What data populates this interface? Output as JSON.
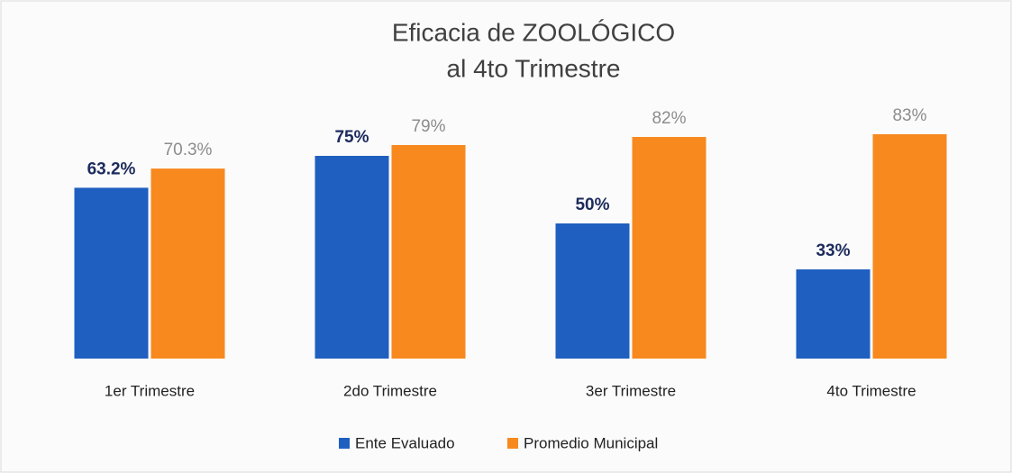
{
  "chart_data": {
    "type": "bar",
    "title": [
      "Eficacia  de ZOOLÓGICO",
      "al 4to Trimestre"
    ],
    "categories": [
      "1er Trimestre",
      "2do Trimestre",
      "3er Trimestre",
      "4to Trimestre"
    ],
    "series": [
      {
        "name": "Ente Evaluado",
        "color": "#1f5fc0",
        "values": [
          63.2,
          75,
          50,
          33
        ],
        "value_labels": [
          "63.2%",
          "75%",
          "50%",
          "33%"
        ]
      },
      {
        "name": "Promedio Municipal",
        "color": "#f7891f",
        "values": [
          70.3,
          79,
          82,
          83
        ],
        "value_labels": [
          "70.3%",
          "79%",
          "82%",
          "83%"
        ]
      }
    ],
    "ylim": [
      0,
      100
    ],
    "legend": "bottom"
  }
}
